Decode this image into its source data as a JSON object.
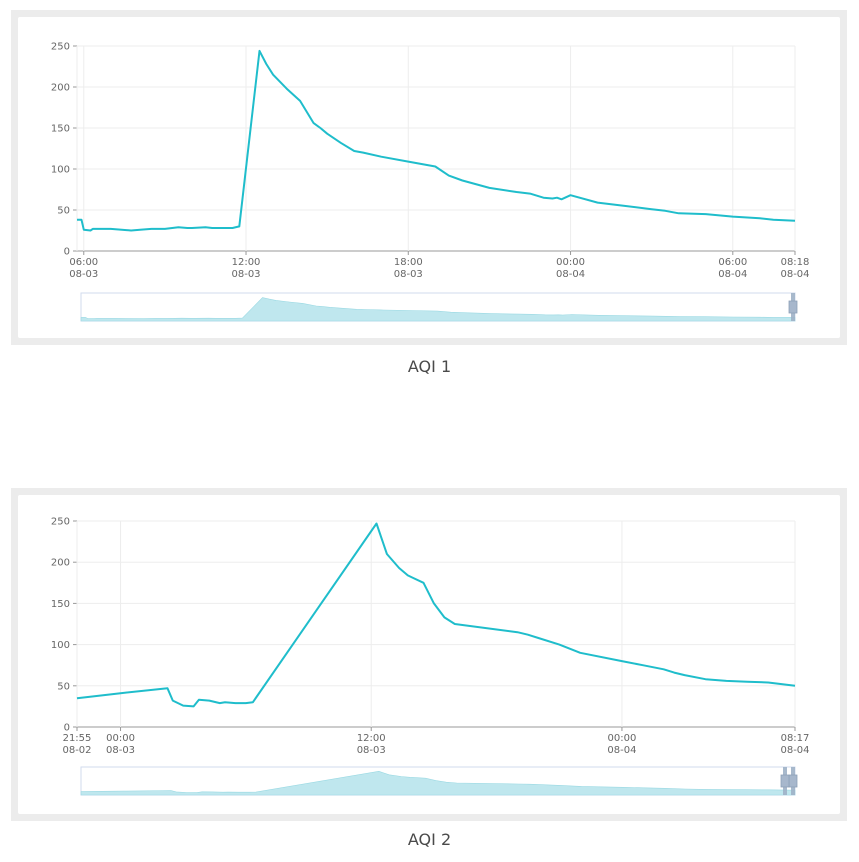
{
  "chart_data": [
    {
      "type": "line",
      "title": "AQI 1",
      "color": "#1fbdcb",
      "x_ticks": [
        {
          "line1": "06:00",
          "line2": "08-03"
        },
        {
          "line1": "12:00",
          "line2": "08-03"
        },
        {
          "line1": "18:00",
          "line2": "08-03"
        },
        {
          "line1": "00:00",
          "line2": "08-04"
        },
        {
          "line1": "06:00",
          "line2": "08-04"
        },
        {
          "line1": "08:18",
          "line2": "08-04"
        }
      ],
      "y_ticks": [
        "0",
        "50",
        "100",
        "150",
        "200",
        "250"
      ],
      "ylim": [
        0,
        250
      ],
      "xlim": [
        "2024-08-03 05:45",
        "2024-08-04 08:18"
      ],
      "grid": true,
      "data_zoom_slider": true,
      "series": [
        {
          "x": [
            "2024-08-03 05:45",
            "2024-08-03 05:55",
            "2024-08-03 06:00",
            "2024-08-03 06:15",
            "2024-08-03 06:20",
            "2024-08-03 07:00",
            "2024-08-03 07:45",
            "2024-08-03 08:05",
            "2024-08-03 08:30",
            "2024-08-03 09:00",
            "2024-08-03 09:30",
            "2024-08-03 09:50",
            "2024-08-03 10:00",
            "2024-08-03 10:30",
            "2024-08-03 10:45",
            "2024-08-03 11:00",
            "2024-08-03 11:30",
            "2024-08-03 11:45",
            "2024-08-03 12:30",
            "2024-08-03 12:45",
            "2024-08-03 13:00",
            "2024-08-03 13:30",
            "2024-08-03 14:00",
            "2024-08-03 14:30",
            "2024-08-03 14:45",
            "2024-08-03 15:00",
            "2024-08-03 15:30",
            "2024-08-03 16:00",
            "2024-08-03 16:20",
            "2024-08-03 17:00",
            "2024-08-03 18:00",
            "2024-08-03 19:00",
            "2024-08-03 19:30",
            "2024-08-03 20:00",
            "2024-08-03 21:00",
            "2024-08-03 22:00",
            "2024-08-03 22:30",
            "2024-08-03 23:00",
            "2024-08-03 23:20",
            "2024-08-03 23:30",
            "2024-08-03 23:40",
            "2024-08-04 00:00",
            "2024-08-04 01:00",
            "2024-08-04 02:00",
            "2024-08-04 03:00",
            "2024-08-04 03:30",
            "2024-08-04 04:00",
            "2024-08-04 05:00",
            "2024-08-04 06:00",
            "2024-08-04 07:00",
            "2024-08-04 07:30",
            "2024-08-04 08:18"
          ],
          "values": [
            38,
            38,
            26,
            25,
            27,
            27,
            25,
            26,
            27,
            27,
            29,
            28,
            28,
            29,
            28,
            28,
            28,
            30,
            244,
            228,
            215,
            198,
            183,
            156,
            150,
            143,
            132,
            122,
            120,
            115,
            109,
            103,
            92,
            86,
            77,
            72,
            70,
            65,
            64,
            65,
            63,
            68,
            59,
            55,
            51,
            49,
            46,
            45,
            42,
            40,
            38,
            37
          ]
        }
      ]
    },
    {
      "type": "line",
      "title": "AQI 2",
      "color": "#1fbdcb",
      "x_ticks": [
        {
          "line1": "21:55",
          "line2": "08-02"
        },
        {
          "line1": "00:00",
          "line2": "08-03"
        },
        {
          "line1": "12:00",
          "line2": "08-03"
        },
        {
          "line1": "00:00",
          "line2": "08-04"
        },
        {
          "line1": "08:17",
          "line2": "08-04"
        }
      ],
      "y_ticks": [
        "0",
        "50",
        "100",
        "150",
        "200",
        "250"
      ],
      "ylim": [
        0,
        250
      ],
      "xlim": [
        "2024-08-02 21:55",
        "2024-08-04 08:17"
      ],
      "grid": true,
      "data_zoom_slider": true,
      "series": [
        {
          "x": [
            "2024-08-02 21:55",
            "2024-08-03 00:00",
            "2024-08-03 02:15",
            "2024-08-03 02:30",
            "2024-08-03 03:00",
            "2024-08-03 03:30",
            "2024-08-03 03:45",
            "2024-08-03 04:15",
            "2024-08-03 04:45",
            "2024-08-03 05:00",
            "2024-08-03 05:30",
            "2024-08-03 06:00",
            "2024-08-03 06:20",
            "2024-08-03 12:15",
            "2024-08-03 12:45",
            "2024-08-03 13:20",
            "2024-08-03 13:45",
            "2024-08-03 14:00",
            "2024-08-03 14:30",
            "2024-08-03 15:00",
            "2024-08-03 15:30",
            "2024-08-03 16:00",
            "2024-08-03 19:00",
            "2024-08-03 19:30",
            "2024-08-03 20:00",
            "2024-08-03 21:00",
            "2024-08-03 22:00",
            "2024-08-04 00:00",
            "2024-08-04 01:00",
            "2024-08-04 02:00",
            "2024-08-04 02:30",
            "2024-08-04 03:00",
            "2024-08-04 04:00",
            "2024-08-04 05:00",
            "2024-08-04 06:00",
            "2024-08-04 07:00",
            "2024-08-04 08:17"
          ],
          "values": [
            35,
            41,
            47,
            32,
            26,
            25,
            33,
            32,
            29,
            30,
            29,
            29,
            30,
            247,
            210,
            193,
            184,
            181,
            175,
            150,
            133,
            125,
            115,
            112,
            108,
            100,
            90,
            80,
            75,
            70,
            66,
            63,
            58,
            56,
            55,
            54,
            50
          ]
        }
      ]
    }
  ],
  "captions": {
    "chart1": "AQI 1",
    "chart2": "AQI 2"
  }
}
